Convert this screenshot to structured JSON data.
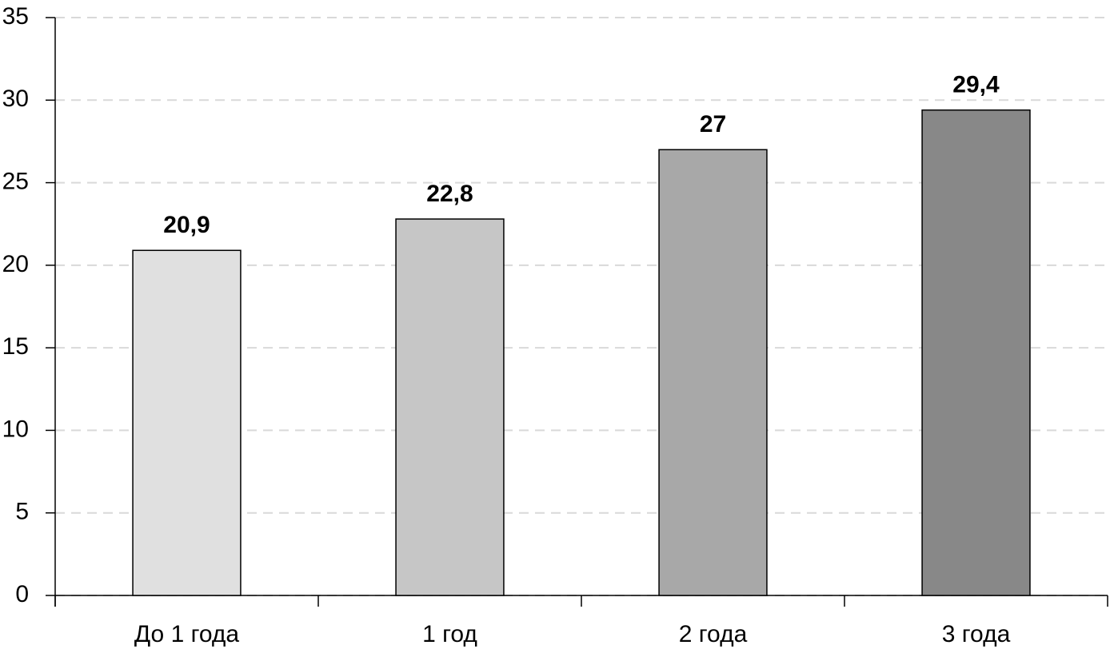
{
  "chart_data": {
    "type": "bar",
    "categories": [
      "До 1 года",
      "1 год",
      "2 года",
      "3 года"
    ],
    "values": [
      20.9,
      22.8,
      27,
      29.4
    ],
    "value_labels": [
      "20,9",
      "22,8",
      "27",
      "29,4"
    ],
    "colors": [
      "#e0e0e0",
      "#c6c6c6",
      "#a8a8a8",
      "#888888"
    ],
    "ylim": [
      0,
      35
    ],
    "yticks": [
      0,
      5,
      10,
      15,
      20,
      25,
      30,
      35
    ],
    "grid": true
  }
}
